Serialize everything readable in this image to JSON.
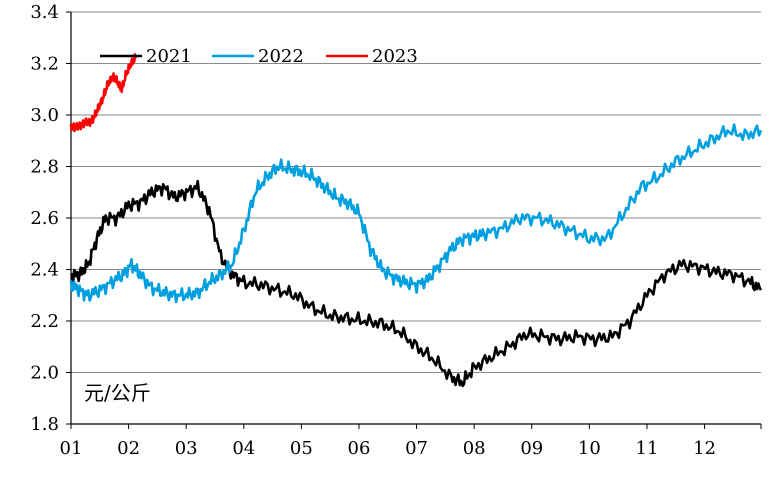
{
  "chart_data": {
    "type": "line",
    "title": "",
    "xlabel": "",
    "ylabel": "",
    "y_unit_label": "元/公斤",
    "ylim": [
      1.8,
      3.4
    ],
    "xlim": [
      1,
      12.98
    ],
    "y_ticks": [
      "1.8",
      "2.0",
      "2.2",
      "2.4",
      "2.6",
      "2.8",
      "3.0",
      "3.2",
      "3.4"
    ],
    "x_ticks": [
      "01",
      "02",
      "03",
      "04",
      "05",
      "06",
      "07",
      "08",
      "09",
      "10",
      "11",
      "12"
    ],
    "grid": "horizontal",
    "legend_position": "top-left",
    "series": [
      {
        "name": "2021",
        "color": "#000000",
        "x": [
          1.0,
          1.15,
          1.3,
          1.45,
          1.6,
          1.8,
          2.0,
          2.2,
          2.4,
          2.6,
          2.8,
          3.0,
          3.2,
          3.4,
          3.6,
          3.8,
          4.0,
          4.3,
          4.6,
          4.9,
          5.2,
          5.5,
          5.8,
          6.1,
          6.4,
          6.7,
          7.0,
          7.3,
          7.6,
          7.8,
          8.0,
          8.3,
          8.6,
          8.9,
          9.2,
          9.5,
          9.8,
          10.1,
          10.4,
          10.7,
          11.0,
          11.3,
          11.6,
          11.9,
          12.2,
          12.5,
          12.8,
          12.98
        ],
        "y": [
          2.38,
          2.38,
          2.42,
          2.52,
          2.6,
          2.6,
          2.65,
          2.66,
          2.7,
          2.72,
          2.68,
          2.7,
          2.72,
          2.63,
          2.45,
          2.38,
          2.35,
          2.34,
          2.32,
          2.3,
          2.25,
          2.22,
          2.21,
          2.2,
          2.19,
          2.16,
          2.1,
          2.05,
          1.98,
          1.96,
          2.02,
          2.06,
          2.1,
          2.15,
          2.14,
          2.13,
          2.14,
          2.13,
          2.14,
          2.2,
          2.3,
          2.38,
          2.42,
          2.41,
          2.39,
          2.38,
          2.35,
          2.32
        ]
      },
      {
        "name": "2022",
        "color": "#00a0e0",
        "x": [
          1.0,
          1.15,
          1.3,
          1.5,
          1.7,
          1.9,
          2.05,
          2.2,
          2.4,
          2.6,
          2.8,
          3.0,
          3.2,
          3.4,
          3.6,
          3.8,
          4.0,
          4.2,
          4.4,
          4.6,
          4.8,
          5.0,
          5.2,
          5.4,
          5.6,
          5.8,
          6.0,
          6.2,
          6.4,
          6.6,
          6.8,
          7.0,
          7.2,
          7.4,
          7.6,
          7.8,
          8.0,
          8.2,
          8.5,
          8.8,
          9.1,
          9.4,
          9.7,
          10.0,
          10.3,
          10.6,
          10.9,
          11.2,
          11.5,
          11.8,
          12.1,
          12.4,
          12.7,
          12.98
        ],
        "y": [
          2.34,
          2.32,
          2.3,
          2.32,
          2.35,
          2.38,
          2.42,
          2.38,
          2.33,
          2.31,
          2.3,
          2.3,
          2.31,
          2.35,
          2.38,
          2.42,
          2.55,
          2.7,
          2.76,
          2.8,
          2.79,
          2.78,
          2.76,
          2.72,
          2.68,
          2.66,
          2.62,
          2.48,
          2.4,
          2.37,
          2.35,
          2.34,
          2.36,
          2.42,
          2.48,
          2.52,
          2.53,
          2.54,
          2.56,
          2.6,
          2.6,
          2.58,
          2.55,
          2.52,
          2.52,
          2.62,
          2.72,
          2.76,
          2.82,
          2.86,
          2.9,
          2.94,
          2.92,
          2.94
        ]
      },
      {
        "name": "2023",
        "color": "#ff0000",
        "x": [
          1.0,
          1.08,
          1.16,
          1.24,
          1.32,
          1.4,
          1.48,
          1.56,
          1.64,
          1.72,
          1.8,
          1.88,
          1.96,
          2.04,
          2.12
        ],
        "y": [
          2.96,
          2.95,
          2.96,
          2.97,
          2.97,
          2.99,
          3.03,
          3.07,
          3.12,
          3.15,
          3.13,
          3.1,
          3.16,
          3.2,
          3.22
        ]
      }
    ]
  }
}
